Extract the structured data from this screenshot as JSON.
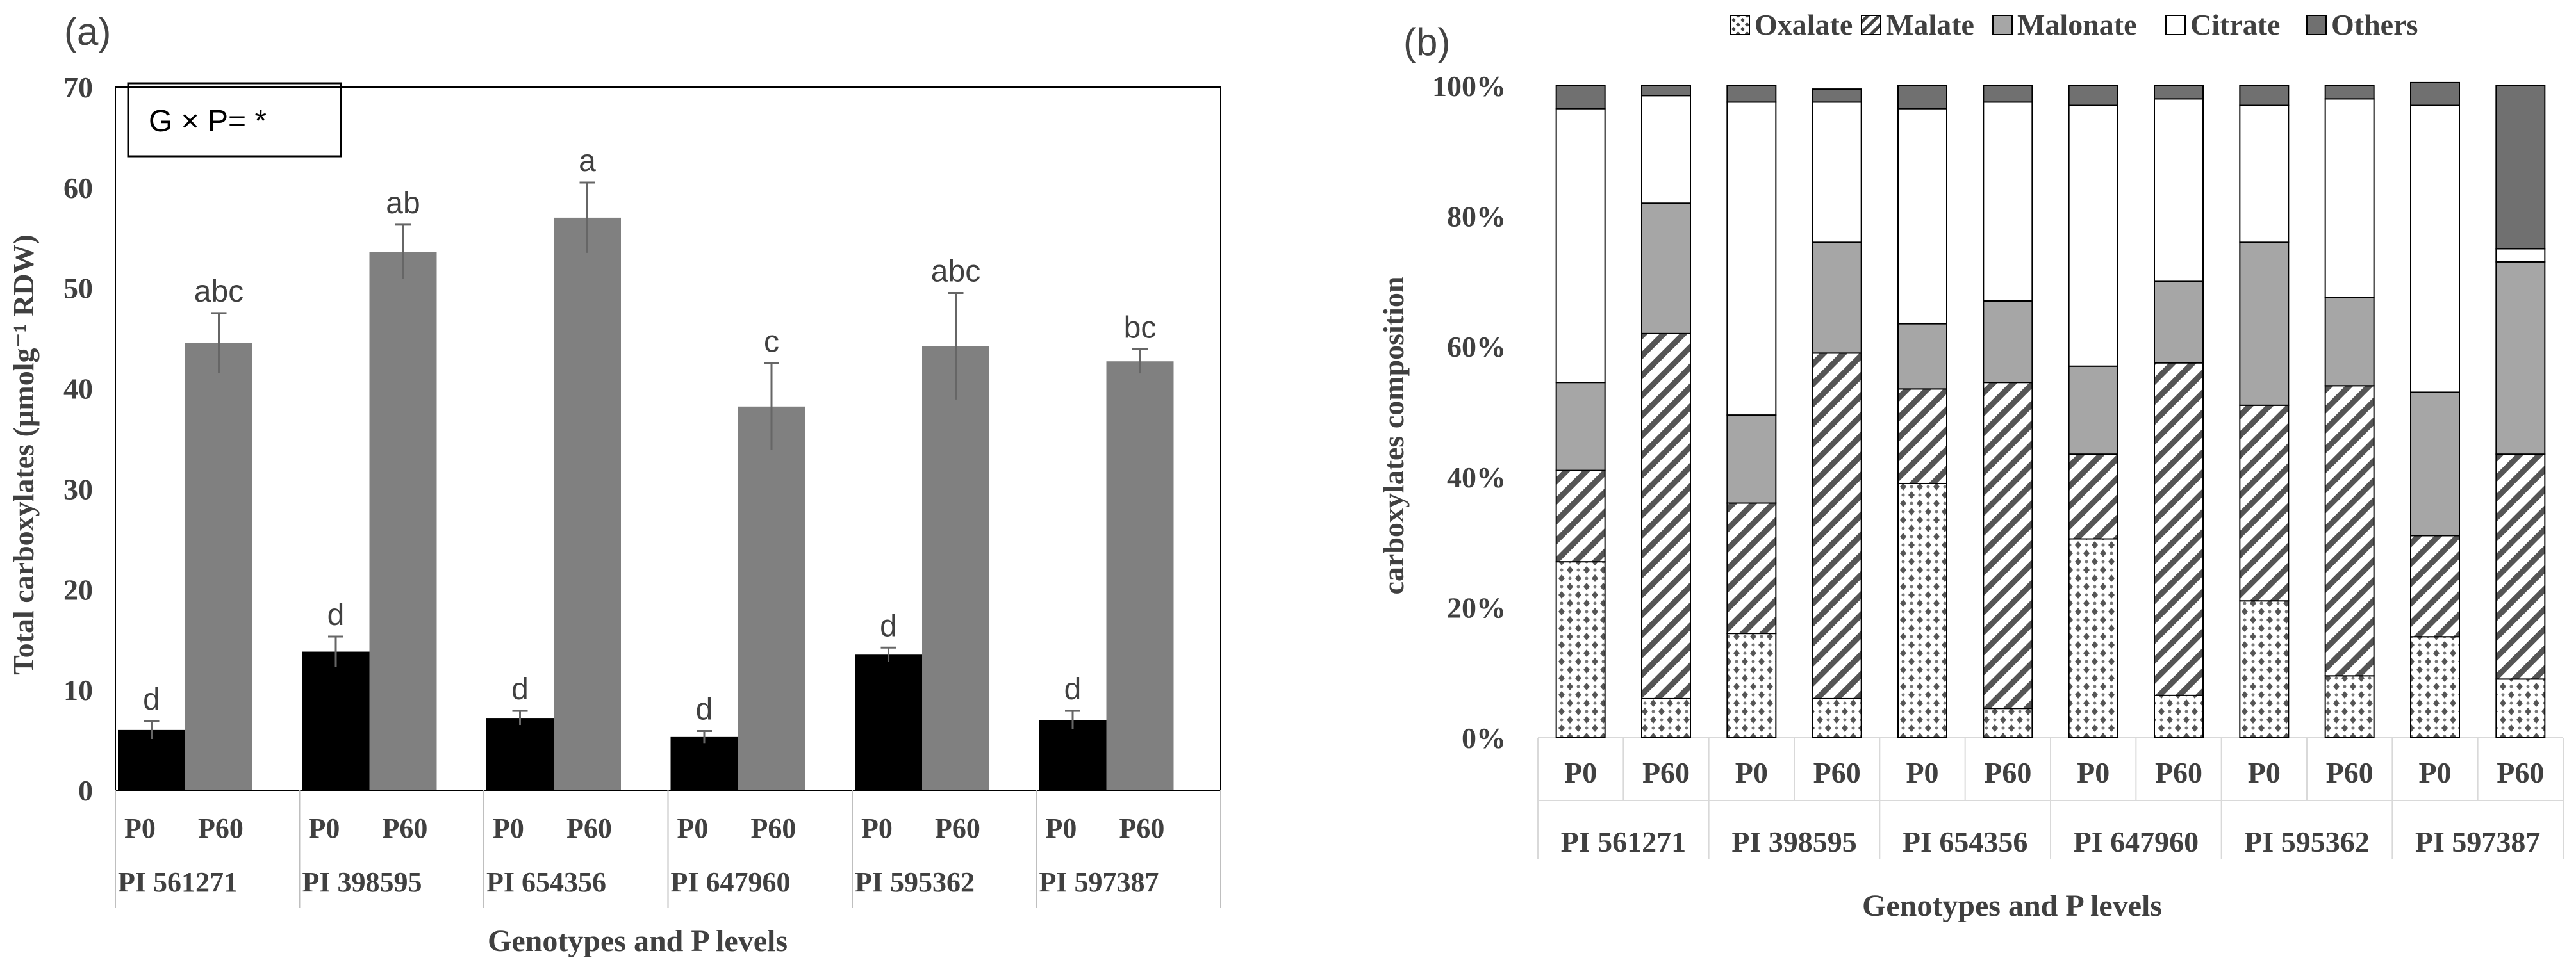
{
  "chart_data": [
    {
      "type": "bar",
      "panel_label": "(a)",
      "title": "",
      "ylabel": "Total carboxylates (µmolg⁻¹ RDW)",
      "xlabel": "Genotypes and P levels",
      "ylim": [
        0,
        70
      ],
      "yticks": [
        0,
        10,
        20,
        30,
        40,
        50,
        60,
        70
      ],
      "stat_annotation": "G × P= *",
      "genotypes": [
        "PI 561271",
        "PI 398595",
        "PI 654356",
        "PI 647960",
        "PI 595362",
        "PI 597387"
      ],
      "p_levels": [
        "P0",
        "P60"
      ],
      "series": [
        {
          "name": "P0",
          "color": "#000000",
          "values": [
            6.0,
            13.8,
            7.2,
            5.3,
            13.5,
            7.0
          ],
          "errors": [
            0.9,
            1.5,
            0.7,
            0.6,
            0.7,
            0.9
          ],
          "letters": [
            "d",
            "d",
            "d",
            "d",
            "d",
            "d"
          ]
        },
        {
          "name": "P60",
          "color": "#808080",
          "values": [
            44.5,
            53.6,
            57.0,
            38.2,
            44.2,
            42.7
          ],
          "errors": [
            3.0,
            2.7,
            3.5,
            4.3,
            5.3,
            1.2
          ],
          "letters": [
            "abc",
            "ab",
            "a",
            "c",
            "abc",
            "bc"
          ]
        }
      ]
    },
    {
      "type": "bar",
      "stacked": true,
      "panel_label": "(b)",
      "title": "",
      "ylabel": "carboxylates composition",
      "xlabel": "Genotypes and P levels",
      "ylim": [
        0,
        100
      ],
      "yticks": [
        "0%",
        "20%",
        "40%",
        "60%",
        "80%",
        "100%"
      ],
      "genotypes": [
        "PI 561271",
        "PI 398595",
        "PI 654356",
        "PI 647960",
        "PI 595362",
        "PI 597387"
      ],
      "p_levels": [
        "P0",
        "P60"
      ],
      "legend_position": "top",
      "series": [
        {
          "name": "Oxalate",
          "pattern": "dots",
          "values": [
            27,
            6,
            16,
            6,
            39,
            4.5,
            30.5,
            6.5,
            21,
            9.5,
            15.5,
            9
          ]
        },
        {
          "name": "Malate",
          "pattern": "hatch",
          "values": [
            14,
            56,
            20,
            53,
            14.5,
            50,
            13,
            51,
            30,
            44.5,
            15.5,
            34.5
          ]
        },
        {
          "name": "Malonate",
          "pattern": "gray",
          "values": [
            13.5,
            20,
            13.5,
            17,
            10,
            12.5,
            13.5,
            12.5,
            25,
            13.5,
            22,
            29.5
          ]
        },
        {
          "name": "Citrate",
          "pattern": "white",
          "values": [
            42,
            16.5,
            48,
            21.5,
            33,
            30.5,
            40,
            28,
            21,
            30.5,
            44,
            2
          ]
        },
        {
          "name": "Others",
          "pattern": "dark",
          "values": [
            3.5,
            1.5,
            2.5,
            2,
            3.5,
            2.5,
            3,
            2,
            3,
            2,
            3.5,
            25
          ]
        }
      ]
    }
  ]
}
